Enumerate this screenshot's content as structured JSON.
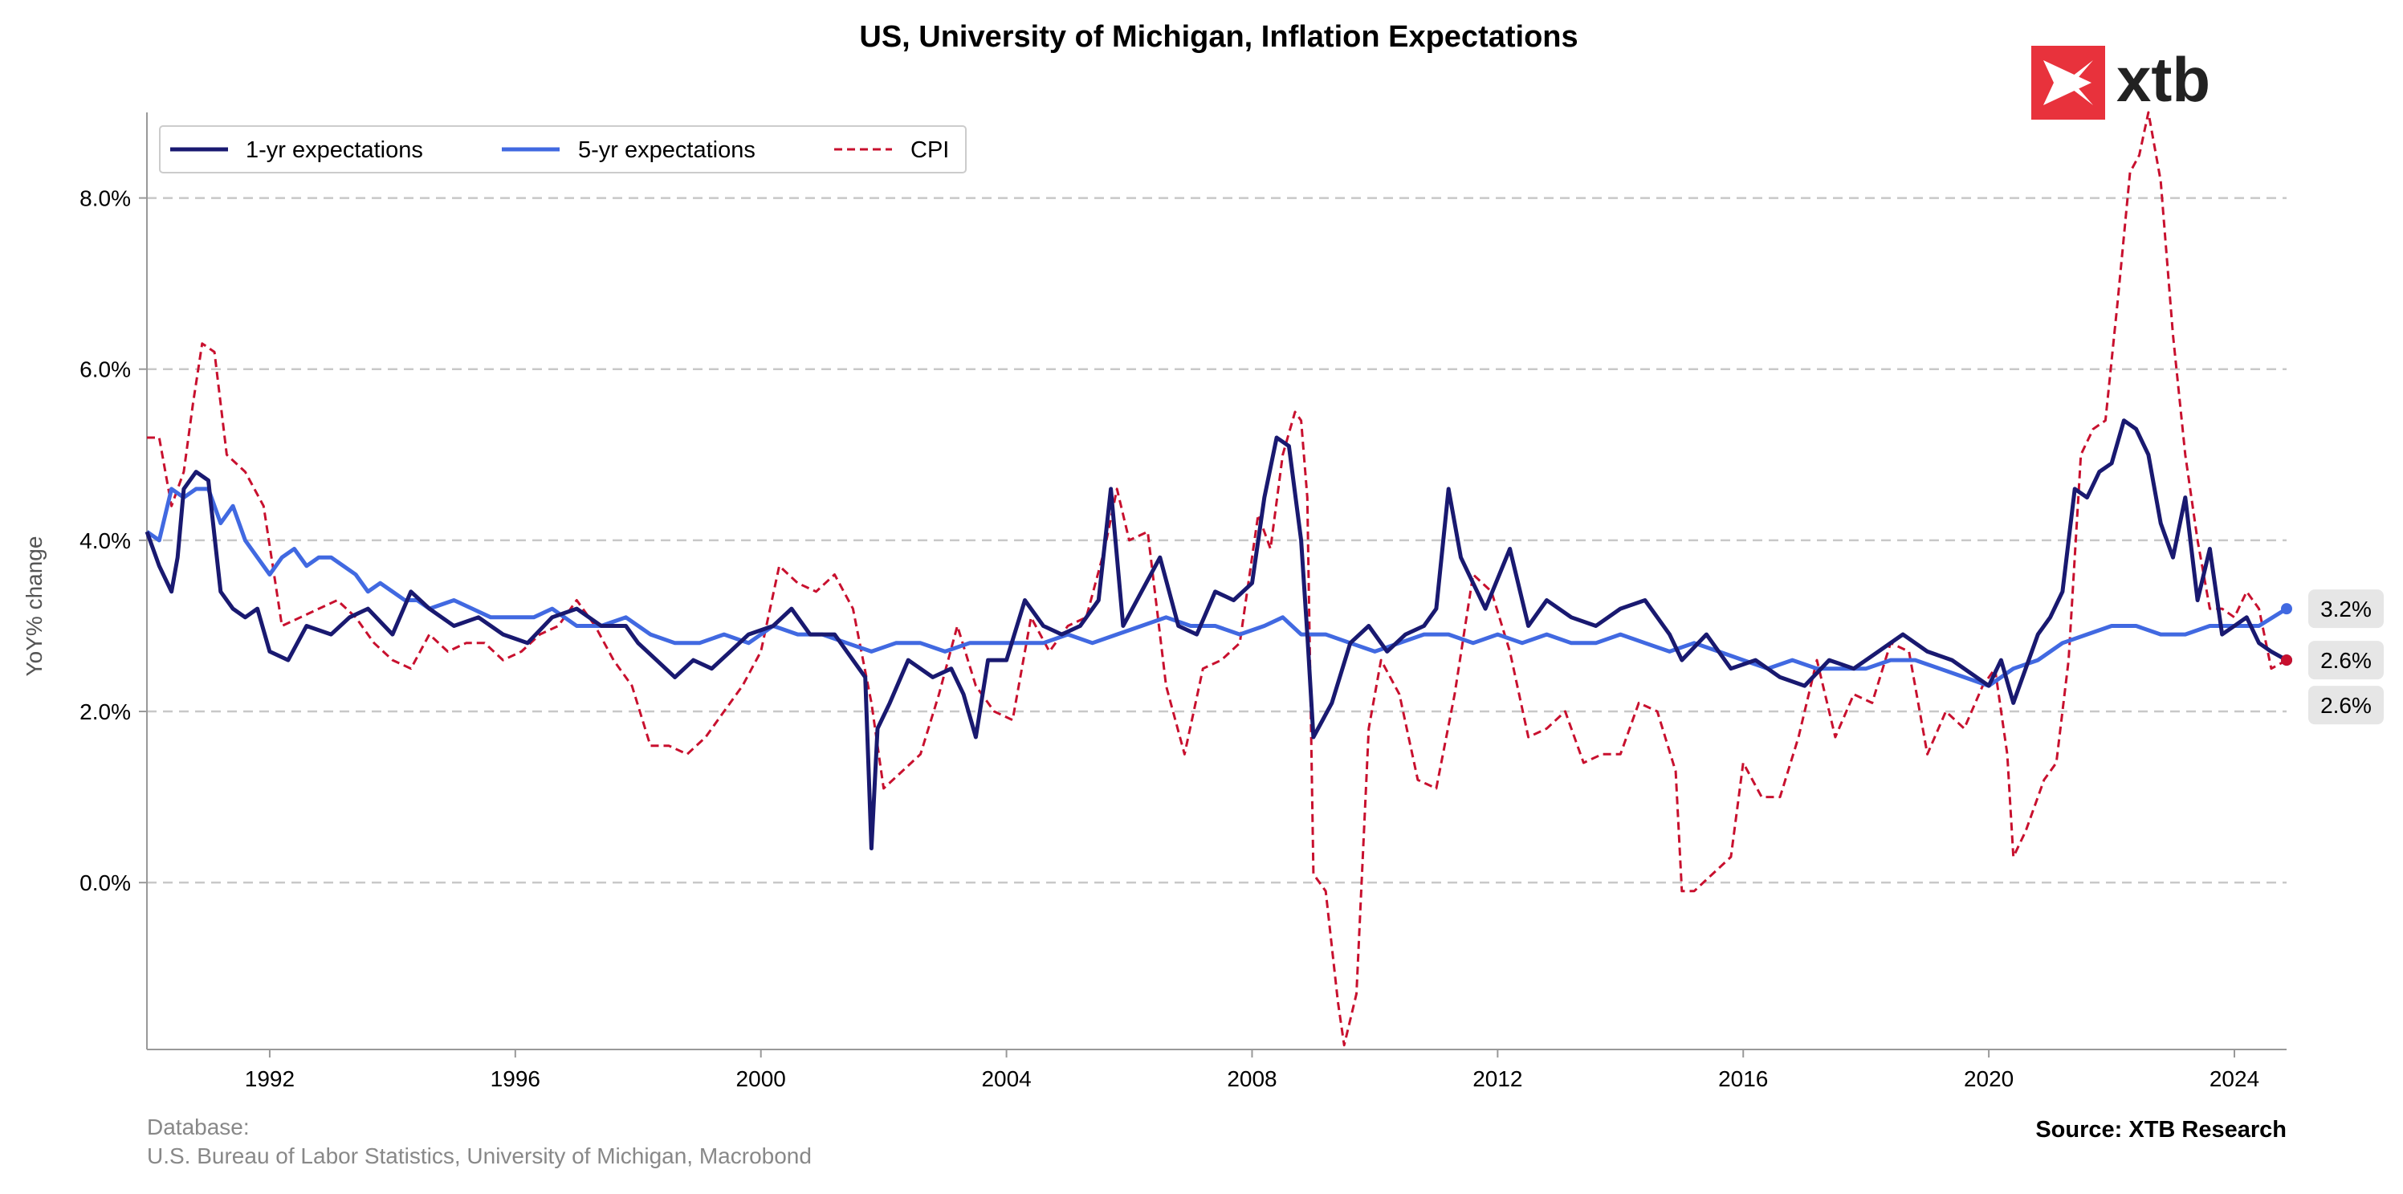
{
  "colors": {
    "one_year": "#191970",
    "five_year": "#4169E1",
    "cpi": "#C8102E",
    "grid": "#c8c8c8",
    "badge_bg": "#e6e6e6",
    "logo_red": "#E8323C"
  },
  "logo": {
    "text": "xtb",
    "icon": "xtb-x-logo-icon"
  },
  "footer": {
    "database_label": "Database:",
    "database_sources": "U.S. Bureau of Labor Statistics, University of Michigan, Macrobond",
    "source": "Source: XTB Research"
  },
  "chart_data": {
    "type": "line",
    "title": "US, University of Michigan, Inflation Expectations",
    "ylabel": "YoY% change",
    "xlabel": "",
    "xlim": [
      1990.0,
      2024.85
    ],
    "ylim": [
      -1.95,
      9.0
    ],
    "yticks": [
      0,
      2,
      4,
      6,
      8
    ],
    "ytick_labels": [
      "0.0%",
      "2.0%",
      "4.0%",
      "6.0%",
      "8.0%"
    ],
    "xticks": [
      1992,
      1996,
      2000,
      2004,
      2008,
      2012,
      2016,
      2020,
      2024
    ],
    "xtick_labels": [
      "1992",
      "1996",
      "2000",
      "2004",
      "2008",
      "2012",
      "2016",
      "2020",
      "2024"
    ],
    "grid": "horizontal dashed",
    "legend_position": "top-left",
    "end_labels": [
      "3.2%",
      "2.6%",
      "2.6%"
    ],
    "series": [
      {
        "name": "1-yr expectations",
        "style": "solid",
        "color": "#191970",
        "x": [
          1990.0,
          1990.2,
          1990.4,
          1990.5,
          1990.6,
          1990.8,
          1991.0,
          1991.2,
          1991.4,
          1991.6,
          1991.8,
          1992.0,
          1992.3,
          1992.6,
          1993.0,
          1993.3,
          1993.6,
          1994.0,
          1994.3,
          1994.6,
          1995.0,
          1995.4,
          1995.8,
          1996.2,
          1996.6,
          1997.0,
          1997.4,
          1997.8,
          1998.0,
          1998.3,
          1998.6,
          1998.9,
          1999.2,
          1999.5,
          1999.8,
          2000.2,
          2000.5,
          2000.8,
          2001.2,
          2001.5,
          2001.7,
          2001.8,
          2001.9,
          2002.1,
          2002.4,
          2002.8,
          2003.1,
          2003.3,
          2003.5,
          2003.7,
          2004.0,
          2004.3,
          2004.6,
          2004.9,
          2005.2,
          2005.5,
          2005.7,
          2005.9,
          2006.2,
          2006.5,
          2006.8,
          2007.1,
          2007.4,
          2007.7,
          2008.0,
          2008.2,
          2008.4,
          2008.6,
          2008.8,
          2008.9,
          2009.0,
          2009.3,
          2009.6,
          2009.9,
          2010.2,
          2010.5,
          2010.8,
          2011.0,
          2011.2,
          2011.4,
          2011.6,
          2011.8,
          2012.2,
          2012.5,
          2012.8,
          2013.2,
          2013.6,
          2014.0,
          2014.4,
          2014.8,
          2015.0,
          2015.4,
          2015.8,
          2016.2,
          2016.6,
          2017.0,
          2017.4,
          2017.8,
          2018.2,
          2018.6,
          2019.0,
          2019.4,
          2019.8,
          2020.0,
          2020.2,
          2020.4,
          2020.8,
          2021.0,
          2021.2,
          2021.4,
          2021.6,
          2021.8,
          2022.0,
          2022.2,
          2022.4,
          2022.6,
          2022.8,
          2023.0,
          2023.2,
          2023.4,
          2023.6,
          2023.8,
          2024.0,
          2024.2,
          2024.4,
          2024.6,
          2024.85
        ],
        "y": [
          4.1,
          3.7,
          3.4,
          3.8,
          4.6,
          4.8,
          4.7,
          3.4,
          3.2,
          3.1,
          3.2,
          2.7,
          2.6,
          3.0,
          2.9,
          3.1,
          3.2,
          2.9,
          3.4,
          3.2,
          3.0,
          3.1,
          2.9,
          2.8,
          3.1,
          3.2,
          3.0,
          3.0,
          2.8,
          2.6,
          2.4,
          2.6,
          2.5,
          2.7,
          2.9,
          3.0,
          3.2,
          2.9,
          2.9,
          2.6,
          2.4,
          0.4,
          1.8,
          2.1,
          2.6,
          2.4,
          2.5,
          2.2,
          1.7,
          2.6,
          2.6,
          3.3,
          3.0,
          2.9,
          3.0,
          3.3,
          4.6,
          3.0,
          3.4,
          3.8,
          3.0,
          2.9,
          3.4,
          3.3,
          3.5,
          4.5,
          5.2,
          5.1,
          4.0,
          2.9,
          1.7,
          2.1,
          2.8,
          3.0,
          2.7,
          2.9,
          3.0,
          3.2,
          4.6,
          3.8,
          3.5,
          3.2,
          3.9,
          3.0,
          3.3,
          3.1,
          3.0,
          3.2,
          3.3,
          2.9,
          2.6,
          2.9,
          2.5,
          2.6,
          2.4,
          2.3,
          2.6,
          2.5,
          2.7,
          2.9,
          2.7,
          2.6,
          2.4,
          2.3,
          2.6,
          2.1,
          2.9,
          3.1,
          3.4,
          4.6,
          4.5,
          4.8,
          4.9,
          5.4,
          5.3,
          5.0,
          4.2,
          3.8,
          4.5,
          3.3,
          3.9,
          2.9,
          3.0,
          3.1,
          2.8,
          2.7,
          2.6
        ]
      },
      {
        "name": "5-yr expectations",
        "style": "solid",
        "color": "#4169E1",
        "x": [
          1990.0,
          1990.2,
          1990.4,
          1990.6,
          1990.8,
          1991.0,
          1991.2,
          1991.4,
          1991.6,
          1991.8,
          1992.0,
          1992.2,
          1992.4,
          1992.6,
          1992.8,
          1993.0,
          1993.2,
          1993.4,
          1993.6,
          1993.8,
          1994.0,
          1994.2,
          1994.4,
          1994.6,
          1995.0,
          1995.3,
          1995.6,
          1996.0,
          1996.3,
          1996.6,
          1997.0,
          1997.4,
          1997.8,
          1998.2,
          1998.6,
          1999.0,
          1999.4,
          1999.8,
          2000.2,
          2000.6,
          2001.0,
          2001.4,
          2001.8,
          2002.2,
          2002.6,
          2003.0,
          2003.4,
          2003.8,
          2004.2,
          2004.6,
          2005.0,
          2005.4,
          2005.8,
          2006.2,
          2006.6,
          2007.0,
          2007.4,
          2007.8,
          2008.2,
          2008.5,
          2008.8,
          2009.2,
          2009.6,
          2010.0,
          2010.4,
          2010.8,
          2011.2,
          2011.6,
          2012.0,
          2012.4,
          2012.8,
          2013.2,
          2013.6,
          2014.0,
          2014.4,
          2014.8,
          2015.2,
          2015.6,
          2016.0,
          2016.4,
          2016.8,
          2017.2,
          2017.6,
          2018.0,
          2018.4,
          2018.8,
          2019.2,
          2019.6,
          2020.0,
          2020.4,
          2020.8,
          2021.2,
          2021.6,
          2022.0,
          2022.4,
          2022.8,
          2023.2,
          2023.6,
          2024.0,
          2024.4,
          2024.85
        ],
        "y": [
          4.1,
          4.0,
          4.6,
          4.5,
          4.6,
          4.6,
          4.2,
          4.4,
          4.0,
          3.8,
          3.6,
          3.8,
          3.9,
          3.7,
          3.8,
          3.8,
          3.7,
          3.6,
          3.4,
          3.5,
          3.4,
          3.3,
          3.3,
          3.2,
          3.3,
          3.2,
          3.1,
          3.1,
          3.1,
          3.2,
          3.0,
          3.0,
          3.1,
          2.9,
          2.8,
          2.8,
          2.9,
          2.8,
          3.0,
          2.9,
          2.9,
          2.8,
          2.7,
          2.8,
          2.8,
          2.7,
          2.8,
          2.8,
          2.8,
          2.8,
          2.9,
          2.8,
          2.9,
          3.0,
          3.1,
          3.0,
          3.0,
          2.9,
          3.0,
          3.1,
          2.9,
          2.9,
          2.8,
          2.7,
          2.8,
          2.9,
          2.9,
          2.8,
          2.9,
          2.8,
          2.9,
          2.8,
          2.8,
          2.9,
          2.8,
          2.7,
          2.8,
          2.7,
          2.6,
          2.5,
          2.6,
          2.5,
          2.5,
          2.5,
          2.6,
          2.6,
          2.5,
          2.4,
          2.3,
          2.5,
          2.6,
          2.8,
          2.9,
          3.0,
          3.0,
          2.9,
          2.9,
          3.0,
          3.0,
          3.0,
          3.2
        ]
      },
      {
        "name": "CPI",
        "style": "dashed",
        "color": "#C8102E",
        "x": [
          1990.0,
          1990.2,
          1990.4,
          1990.6,
          1990.75,
          1990.9,
          1991.1,
          1991.3,
          1991.6,
          1991.9,
          1992.2,
          1992.5,
          1992.8,
          1993.1,
          1993.4,
          1993.7,
          1994.0,
          1994.3,
          1994.6,
          1994.9,
          1995.2,
          1995.5,
          1995.8,
          1996.1,
          1996.4,
          1996.7,
          1997.0,
          1997.3,
          1997.6,
          1997.9,
          1998.2,
          1998.5,
          1998.8,
          1999.1,
          1999.4,
          1999.7,
          2000.0,
          2000.3,
          2000.6,
          2000.9,
          2001.2,
          2001.5,
          2001.8,
          2002.0,
          2002.3,
          2002.6,
          2002.9,
          2003.2,
          2003.5,
          2003.8,
          2004.1,
          2004.4,
          2004.7,
          2005.0,
          2005.3,
          2005.6,
          2005.8,
          2006.0,
          2006.3,
          2006.6,
          2006.9,
          2007.2,
          2007.5,
          2007.8,
          2008.1,
          2008.3,
          2008.5,
          2008.7,
          2008.8,
          2008.9,
          2009.0,
          2009.2,
          2009.4,
          2009.5,
          2009.7,
          2009.9,
          2010.1,
          2010.4,
          2010.7,
          2011.0,
          2011.3,
          2011.6,
          2011.9,
          2012.2,
          2012.5,
          2012.8,
          2013.1,
          2013.4,
          2013.7,
          2014.0,
          2014.3,
          2014.6,
          2014.9,
          2015.0,
          2015.2,
          2015.5,
          2015.8,
          2016.0,
          2016.3,
          2016.6,
          2016.9,
          2017.2,
          2017.5,
          2017.8,
          2018.1,
          2018.4,
          2018.7,
          2019.0,
          2019.3,
          2019.6,
          2019.9,
          2020.1,
          2020.3,
          2020.4,
          2020.6,
          2020.9,
          2021.1,
          2021.3,
          2021.5,
          2021.7,
          2021.9,
          2022.1,
          2022.3,
          2022.45,
          2022.6,
          2022.8,
          2023.0,
          2023.2,
          2023.4,
          2023.6,
          2023.8,
          2024.0,
          2024.2,
          2024.4,
          2024.6,
          2024.85
        ],
        "y": [
          5.2,
          5.2,
          4.4,
          4.8,
          5.6,
          6.3,
          6.2,
          5.0,
          4.8,
          4.4,
          3.0,
          3.1,
          3.2,
          3.3,
          3.1,
          2.8,
          2.6,
          2.5,
          2.9,
          2.7,
          2.8,
          2.8,
          2.6,
          2.7,
          2.9,
          3.0,
          3.3,
          3.0,
          2.6,
          2.3,
          1.6,
          1.6,
          1.5,
          1.7,
          2.0,
          2.3,
          2.7,
          3.7,
          3.5,
          3.4,
          3.6,
          3.2,
          2.1,
          1.1,
          1.3,
          1.5,
          2.2,
          3.0,
          2.3,
          2.0,
          1.9,
          3.1,
          2.7,
          3.0,
          3.1,
          3.9,
          4.6,
          4.0,
          4.1,
          2.3,
          1.5,
          2.5,
          2.6,
          2.8,
          4.3,
          3.9,
          5.0,
          5.5,
          5.4,
          4.5,
          0.1,
          -0.1,
          -1.4,
          -1.9,
          -1.3,
          1.8,
          2.6,
          2.2,
          1.2,
          1.1,
          2.2,
          3.6,
          3.4,
          2.7,
          1.7,
          1.8,
          2.0,
          1.4,
          1.5,
          1.5,
          2.1,
          2.0,
          1.3,
          -0.1,
          -0.1,
          0.1,
          0.3,
          1.4,
          1.0,
          1.0,
          1.7,
          2.6,
          1.7,
          2.2,
          2.1,
          2.8,
          2.7,
          1.5,
          2.0,
          1.8,
          2.3,
          2.5,
          1.5,
          0.3,
          0.6,
          1.2,
          1.4,
          2.6,
          5.0,
          5.3,
          5.4,
          6.8,
          8.3,
          8.5,
          9.0,
          8.2,
          6.4,
          5.0,
          4.0,
          3.2,
          3.2,
          3.1,
          3.4,
          3.2,
          2.5,
          2.6
        ]
      }
    ]
  }
}
